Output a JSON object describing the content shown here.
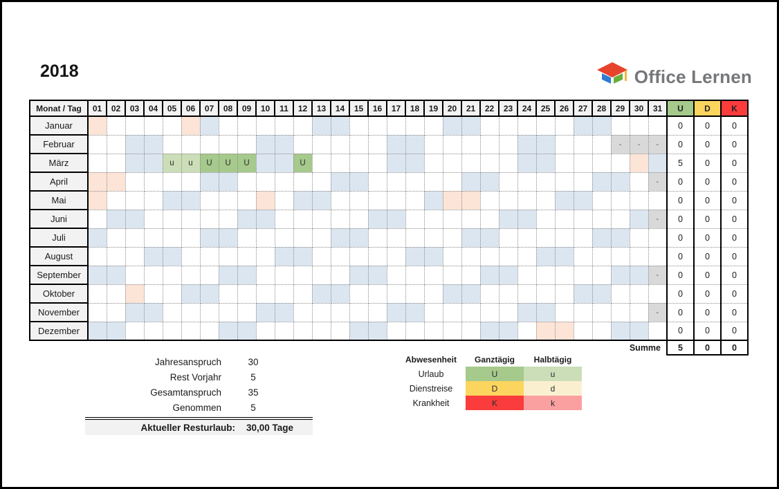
{
  "header": {
    "year": "2018",
    "brand": "Office Lernen"
  },
  "colors": {
    "header_bg": "#f2f2f2",
    "weekend": "#dce6f1",
    "holiday": "#fce4d6",
    "invalid": "#d9d9d9",
    "mark_U": "#a6c98c",
    "mark_u": "#cbdeb8",
    "mark_D": "#fcd55f",
    "mark_d": "#faf0d0",
    "mark_K": "#fa3c3c",
    "mark_k": "#fba0a0"
  },
  "table": {
    "corner_label": "Monat / Tag",
    "invalid_text": "-",
    "days": [
      "01",
      "02",
      "03",
      "04",
      "05",
      "06",
      "07",
      "08",
      "09",
      "10",
      "11",
      "12",
      "13",
      "14",
      "15",
      "16",
      "17",
      "18",
      "19",
      "20",
      "21",
      "22",
      "23",
      "24",
      "25",
      "26",
      "27",
      "28",
      "29",
      "30",
      "31"
    ],
    "count_columns": [
      {
        "label": "U",
        "color": "#a6c98c"
      },
      {
        "label": "D",
        "color": "#fcd55f"
      },
      {
        "label": "K",
        "color": "#fa3c3c"
      }
    ],
    "summe_label": "Summe",
    "summe_totals": [
      "5",
      "0",
      "0"
    ],
    "months": [
      {
        "name": "Januar",
        "weekend": [
          7,
          13,
          14,
          20,
          21,
          27,
          28
        ],
        "holiday": [
          1,
          6
        ],
        "invalid": [],
        "entries": {},
        "counts": [
          "0",
          "0",
          "0"
        ]
      },
      {
        "name": "Februar",
        "weekend": [
          3,
          4,
          10,
          11,
          17,
          18,
          24,
          25
        ],
        "holiday": [],
        "invalid": [
          29,
          30,
          31
        ],
        "entries": {},
        "counts": [
          "0",
          "0",
          "0"
        ]
      },
      {
        "name": "März",
        "weekend": [
          3,
          4,
          10,
          11,
          17,
          18,
          24,
          25,
          31
        ],
        "holiday": [
          30
        ],
        "invalid": [],
        "entries": {
          "5": "u",
          "6": "u",
          "7": "U",
          "8": "U",
          "9": "U",
          "12": "U"
        },
        "counts": [
          "5",
          "0",
          "0"
        ]
      },
      {
        "name": "April",
        "weekend": [
          7,
          8,
          14,
          15,
          21,
          22,
          28,
          29
        ],
        "holiday": [
          1,
          2
        ],
        "invalid": [
          31
        ],
        "entries": {},
        "counts": [
          "0",
          "0",
          "0"
        ]
      },
      {
        "name": "Mai",
        "weekend": [
          5,
          6,
          12,
          13,
          19,
          26,
          27
        ],
        "holiday": [
          1,
          10,
          20,
          21
        ],
        "invalid": [],
        "entries": {},
        "counts": [
          "0",
          "0",
          "0"
        ]
      },
      {
        "name": "Juni",
        "weekend": [
          2,
          3,
          9,
          10,
          16,
          17,
          23,
          24,
          30
        ],
        "holiday": [],
        "invalid": [
          31
        ],
        "entries": {},
        "counts": [
          "0",
          "0",
          "0"
        ]
      },
      {
        "name": "Juli",
        "weekend": [
          1,
          7,
          8,
          14,
          15,
          21,
          22,
          28,
          29
        ],
        "holiday": [],
        "invalid": [],
        "entries": {},
        "counts": [
          "0",
          "0",
          "0"
        ]
      },
      {
        "name": "August",
        "weekend": [
          4,
          5,
          11,
          12,
          18,
          19,
          25,
          26
        ],
        "holiday": [],
        "invalid": [],
        "entries": {},
        "counts": [
          "0",
          "0",
          "0"
        ]
      },
      {
        "name": "September",
        "weekend": [
          1,
          2,
          8,
          9,
          15,
          16,
          22,
          23,
          29,
          30
        ],
        "holiday": [],
        "invalid": [
          31
        ],
        "entries": {},
        "counts": [
          "0",
          "0",
          "0"
        ]
      },
      {
        "name": "Oktober",
        "weekend": [
          6,
          7,
          13,
          14,
          20,
          21,
          27,
          28
        ],
        "holiday": [
          3
        ],
        "invalid": [],
        "entries": {},
        "counts": [
          "0",
          "0",
          "0"
        ]
      },
      {
        "name": "November",
        "weekend": [
          3,
          4,
          10,
          11,
          17,
          18,
          24,
          25
        ],
        "holiday": [],
        "invalid": [
          31
        ],
        "entries": {},
        "counts": [
          "0",
          "0",
          "0"
        ]
      },
      {
        "name": "Dezember",
        "weekend": [
          1,
          2,
          8,
          9,
          15,
          16,
          22,
          23,
          29,
          30
        ],
        "holiday": [
          25,
          26
        ],
        "invalid": [],
        "entries": {},
        "counts": [
          "0",
          "0",
          "0"
        ]
      }
    ]
  },
  "summary": {
    "rows": [
      {
        "label": "Jahresanspruch",
        "value": "30"
      },
      {
        "label": "Rest Vorjahr",
        "value": "5"
      },
      {
        "label": "Gesamtanspruch",
        "value": "35"
      },
      {
        "label": "Genommen",
        "value": "5"
      }
    ],
    "total_label": "Aktueller Resturlaub:",
    "total_value": "30,00 Tage"
  },
  "legend": {
    "title": "Abwesenheit",
    "col_full": "Ganztägig",
    "col_half": "Halbtägig",
    "rows": [
      {
        "label": "Urlaub",
        "full": "U",
        "half": "u",
        "full_color": "#a6c98c",
        "half_color": "#cbdeb8"
      },
      {
        "label": "Dienstreise",
        "full": "D",
        "half": "d",
        "full_color": "#fcd55f",
        "half_color": "#faf0d0"
      },
      {
        "label": "Krankheit",
        "full": "K",
        "half": "k",
        "full_color": "#fa3c3c",
        "half_color": "#fba0a0"
      }
    ]
  }
}
